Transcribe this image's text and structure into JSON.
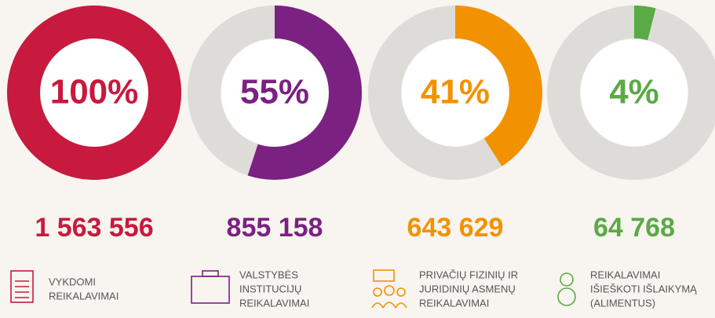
{
  "chart_data": [
    {
      "type": "donut",
      "values": [
        100
      ],
      "value_labels": [
        "100%"
      ],
      "color": "#c8193f",
      "count": "1 563 556",
      "label": [
        "VYKDOMI",
        "REIKALAVIMAI"
      ]
    },
    {
      "type": "donut",
      "values": [
        55
      ],
      "value_labels": [
        "55%"
      ],
      "color": "#7b2182",
      "count": "855 158",
      "label": [
        "VALSTYBĖS",
        "INSTITUCIJŲ",
        "REIKALAVIMAI"
      ]
    },
    {
      "type": "donut",
      "values": [
        41
      ],
      "value_labels": [
        "41%"
      ],
      "color": "#f29200",
      "count": "643 629",
      "label": [
        "PRIVAČIŲ FIZINIŲ IR",
        "JURIDINIŲ ASMENŲ",
        "REIKALAVIMAI"
      ]
    },
    {
      "type": "donut",
      "values": [
        4
      ],
      "value_labels": [
        "4%"
      ],
      "color": "#5aaa46",
      "count": "64 768",
      "label": [
        "REIKALAVIMAI",
        "IŠIEŠKOTI IŠLAIKYMĄ",
        "(ALIMENTUS)"
      ]
    }
  ]
}
